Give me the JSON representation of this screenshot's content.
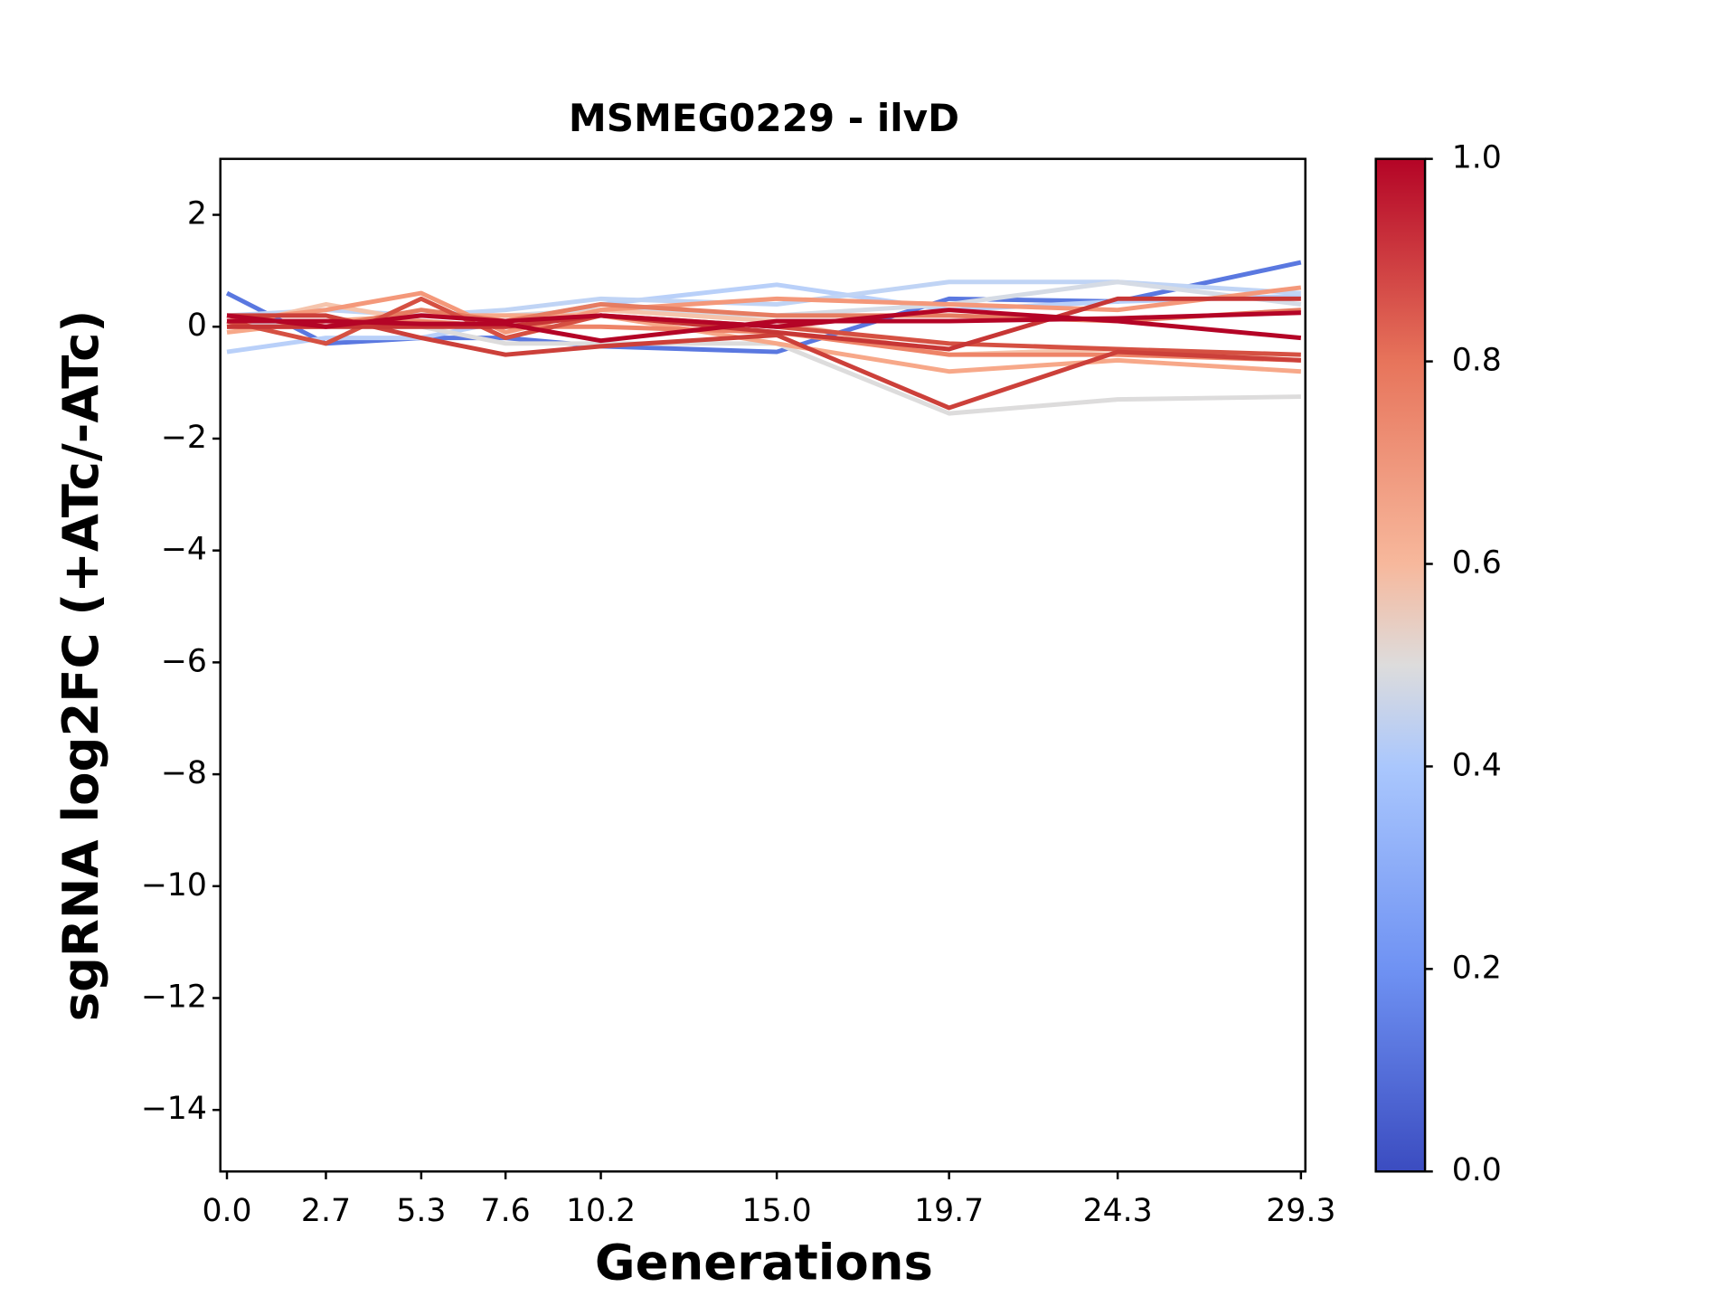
{
  "chart_data": {
    "type": "line",
    "title": "MSMEG0229 - ilvD",
    "x_label": "Generations",
    "y_label": "sgRNA log2FC (+ATc/-ATc)",
    "x": [
      0,
      2.7,
      5.3,
      7.6,
      10.2,
      15.0,
      19.7,
      24.3,
      29.3
    ],
    "xlim": [
      -0.18,
      29.42
    ],
    "xticks": [
      {
        "value": 0,
        "label": "0.0"
      },
      2.7,
      5.3,
      7.6,
      10.2,
      {
        "value": 15,
        "label": "15.0"
      },
      19.7,
      24.3,
      29.3
    ],
    "ylim": [
      -15.1,
      3
    ],
    "yticks": [
      2,
      0,
      {
        "value": -2,
        "label": "−2"
      },
      {
        "value": -4,
        "label": "−4"
      },
      {
        "value": -6,
        "label": "−6"
      },
      {
        "value": -8,
        "label": "−8"
      },
      {
        "value": -10,
        "label": "−10"
      },
      {
        "value": -12,
        "label": "−12"
      },
      {
        "value": -14,
        "label": "−14"
      }
    ],
    "series": [
      {
        "color": "#5a78e0",
        "values": [
          0.6,
          -0.3,
          -0.2,
          -0.2,
          -0.35,
          -0.45,
          0.5,
          0.45,
          1.15
        ]
      },
      {
        "color": "#b9d0f9",
        "values": [
          -0.45,
          -0.2,
          -0.2,
          0.1,
          0.4,
          0.75,
          0.3,
          0.45,
          0.55
        ]
      },
      {
        "color": "#c0d4f5",
        "values": [
          0.2,
          0.3,
          0.2,
          0.3,
          0.5,
          0.4,
          0.8,
          0.8,
          0.6
        ]
      },
      {
        "color": "#dddcdc",
        "values": [
          0.1,
          0.0,
          0.0,
          -0.3,
          -0.3,
          -0.3,
          -1.55,
          -1.3,
          -1.25
        ]
      },
      {
        "color": "#d5dbe5",
        "values": [
          0,
          0.1,
          0.2,
          0.2,
          0.3,
          0.2,
          0.4,
          0.8,
          0.4
        ]
      },
      {
        "color": "#f5c4ac",
        "values": [
          0,
          0.4,
          0.1,
          0,
          0.3,
          0.1,
          -0.5,
          -0.4,
          -0.6
        ]
      },
      {
        "color": "#f4987a",
        "values": [
          0.1,
          0.3,
          0.6,
          -0.1,
          0.3,
          0.5,
          0.4,
          0.3,
          0.7
        ]
      },
      {
        "color": "#f7a889",
        "values": [
          -0.1,
          0.1,
          0.2,
          0.2,
          0.2,
          -0.3,
          -0.8,
          -0.6,
          -0.8
        ]
      },
      {
        "color": "#e67c61",
        "values": [
          0.2,
          0,
          0.3,
          0.1,
          0.4,
          0.2,
          0.2,
          0.1,
          0.3
        ]
      },
      {
        "color": "#ee8468",
        "values": [
          0,
          0,
          0.1,
          0,
          0,
          -0.1,
          -0.5,
          -0.5,
          -0.6
        ]
      },
      {
        "color": "#d55042",
        "values": [
          0.1,
          -0.3,
          0.5,
          -0.2,
          0.2,
          0,
          -0.3,
          -0.4,
          -0.5
        ]
      },
      {
        "color": "#cc403a",
        "values": [
          0.2,
          0.2,
          -0.2,
          -0.5,
          -0.35,
          -0.15,
          -1.45,
          -0.45,
          -0.6
        ]
      },
      {
        "color": "#c73635",
        "values": [
          0,
          0,
          0,
          0,
          0.2,
          -0.1,
          -0.4,
          0.5,
          0.5
        ]
      },
      {
        "color": "#b40426",
        "values": [
          0.2,
          0,
          0.2,
          0.1,
          0.2,
          0,
          0.3,
          0.1,
          -0.2
        ]
      },
      {
        "color": "#b40426",
        "values": [
          0.1,
          0.1,
          0.05,
          0.05,
          -0.25,
          0.1,
          0.1,
          0.15,
          0.25
        ]
      }
    ],
    "colorbar": {
      "lim": [
        0,
        1
      ],
      "ticks": [
        {
          "value": 0,
          "label": "0.0"
        },
        0.2,
        0.4,
        0.6,
        0.8,
        {
          "value": 1,
          "label": "1.0"
        }
      ]
    }
  }
}
